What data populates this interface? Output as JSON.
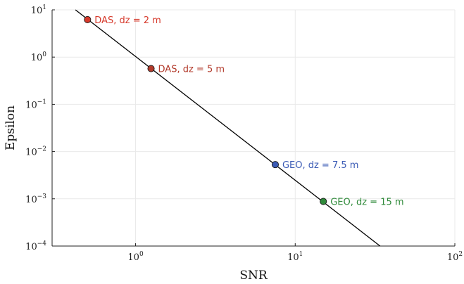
{
  "chart_data": {
    "type": "scatter",
    "title": "",
    "xlabel": "SNR",
    "ylabel": "Epsilon",
    "xscale": "log",
    "yscale": "log",
    "xlim": [
      0.3,
      100
    ],
    "ylim": [
      0.0001,
      10
    ],
    "grid": true,
    "legend": "none",
    "x_ticks": [
      {
        "value": 1,
        "base": "10",
        "exp": "0"
      },
      {
        "value": 10,
        "base": "10",
        "exp": "1"
      },
      {
        "value": 100,
        "base": "10",
        "exp": "2"
      }
    ],
    "y_ticks": [
      {
        "value": 0.0001,
        "base": "10",
        "exp": "−4"
      },
      {
        "value": 0.001,
        "base": "10",
        "exp": "−3"
      },
      {
        "value": 0.01,
        "base": "10",
        "exp": "−2"
      },
      {
        "value": 0.1,
        "base": "10",
        "exp": "−1"
      },
      {
        "value": 1,
        "base": "10",
        "exp": "0"
      },
      {
        "value": 10,
        "base": "10",
        "exp": "1"
      }
    ],
    "fit_line": {
      "points": [
        [
          0.42,
          10
        ],
        [
          34,
          0.0001
        ]
      ],
      "color": "#000000"
    },
    "points": [
      {
        "label": "DAS, dz = 2 m",
        "x": 0.5,
        "y": 6.2,
        "color": "#d6392b",
        "label_color": "#d6392b"
      },
      {
        "label": "DAS, dz = 5 m",
        "x": 1.25,
        "y": 0.57,
        "color": "#b23a2b",
        "label_color": "#b23a2b"
      },
      {
        "label": "GEO, dz = 7.5 m",
        "x": 7.5,
        "y": 0.0053,
        "color": "#3b5bb5",
        "label_color": "#3b5bb5"
      },
      {
        "label": "GEO, dz = 15 m",
        "x": 15,
        "y": 0.00088,
        "color": "#2f8a3a",
        "label_color": "#2f8a3a"
      }
    ]
  }
}
